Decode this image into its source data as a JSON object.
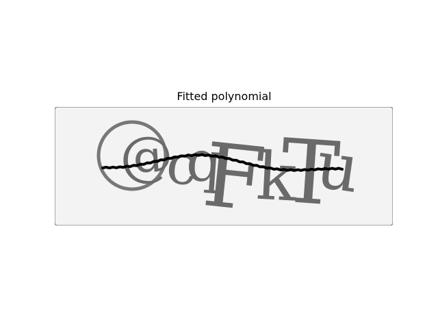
{
  "title": "Fitted polynomial",
  "captcha": {
    "text": "@cqFkTu",
    "glyphs": [
      {
        "char": "@",
        "size": 128,
        "rotate": -4
      },
      {
        "char": "c",
        "size": 80,
        "rotate": 6
      },
      {
        "char": "q",
        "size": 82,
        "rotate": 4
      },
      {
        "char": "F",
        "size": 128,
        "rotate": 6
      },
      {
        "char": "k",
        "size": 96,
        "rotate": 3
      },
      {
        "char": "T",
        "size": 128,
        "rotate": 4
      },
      {
        "char": "u",
        "size": 96,
        "rotate": 8
      }
    ],
    "background_color": "#f3f3f3",
    "glyph_color": "#6a6a6a",
    "curve_color": "#000000"
  }
}
